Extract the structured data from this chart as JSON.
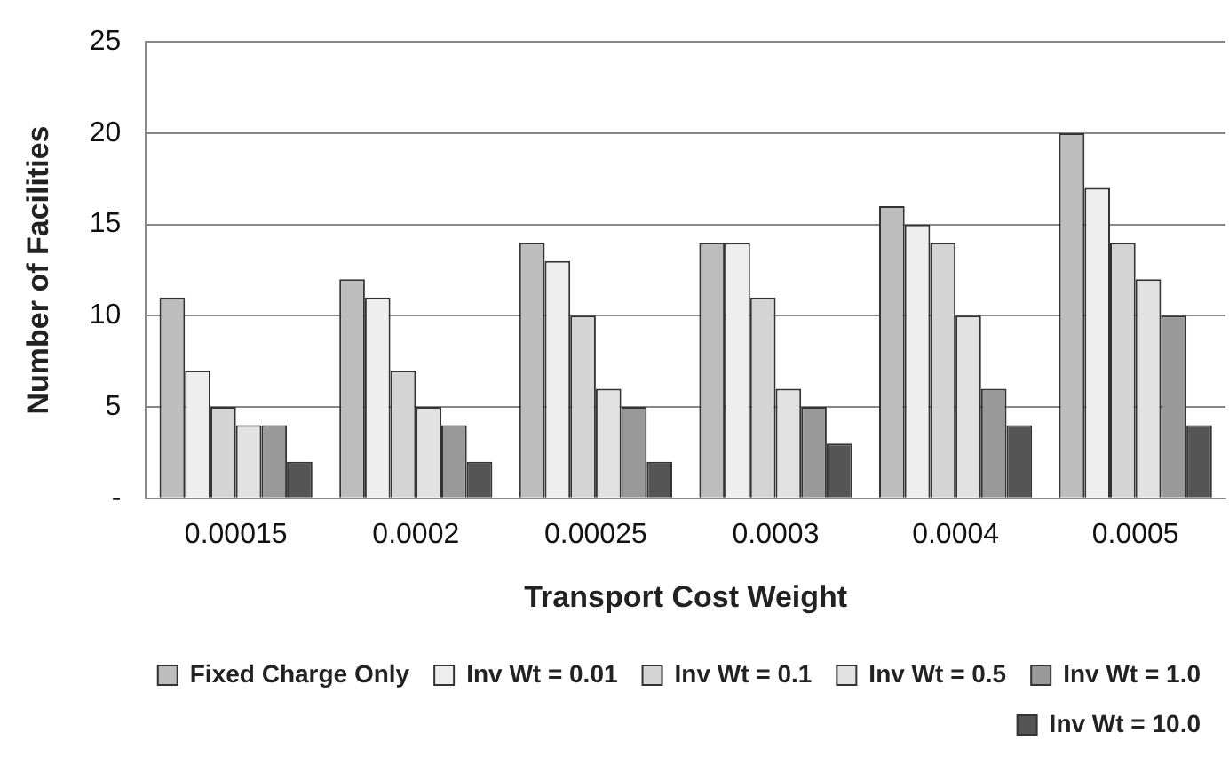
{
  "chart_data": {
    "type": "bar",
    "xlabel": "Transport Cost Weight",
    "ylabel": "Number of Facilities",
    "categories": [
      "0.00015",
      "0.0002",
      "0.00025",
      "0.0003",
      "0.0004",
      "0.0005"
    ],
    "series": [
      {
        "name": "Fixed Charge Only",
        "color": "#bdbdbd",
        "values": [
          11,
          12,
          14,
          14,
          16,
          20
        ]
      },
      {
        "name": "Inv Wt = 0.01",
        "color": "#eeeeee",
        "values": [
          7,
          11,
          13,
          14,
          15,
          17
        ]
      },
      {
        "name": "Inv Wt = 0.1",
        "color": "#d4d4d4",
        "values": [
          5,
          7,
          10,
          11,
          14,
          14
        ]
      },
      {
        "name": "Inv Wt = 0.5",
        "color": "#e2e2e2",
        "values": [
          4,
          5,
          6,
          6,
          10,
          12
        ]
      },
      {
        "name": "Inv Wt = 1.0",
        "color": "#999999",
        "values": [
          4,
          4,
          5,
          5,
          6,
          10
        ]
      },
      {
        "name": "Inv Wt = 10.0",
        "color": "#555555",
        "values": [
          2,
          2,
          2,
          3,
          4,
          4
        ]
      }
    ],
    "ylim": [
      0,
      25
    ],
    "yticks": [
      {
        "value": 0,
        "label": "-"
      },
      5,
      10,
      15,
      20,
      25
    ],
    "grid": "y",
    "legend": "bottom right"
  }
}
